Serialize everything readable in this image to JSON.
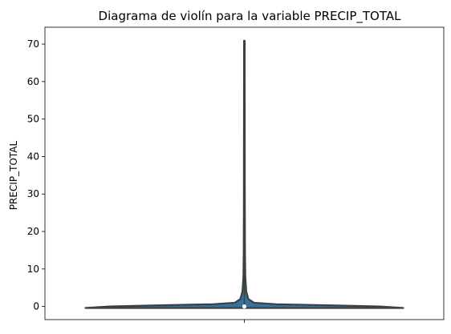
{
  "chart_data": {
    "type": "violin",
    "title": "Diagrama de violín para la variable PRECIP_TOTAL",
    "xlabel": "",
    "ylabel": "PRECIP_TOTAL",
    "ylim": [
      -3.5,
      74.5
    ],
    "yticks": [
      0,
      10,
      20,
      30,
      40,
      50,
      60,
      70
    ],
    "grid": false,
    "series": [
      {
        "min": -0.4,
        "max": 70.9,
        "q1": 0,
        "median": 0,
        "q3": 0.3,
        "color": "#3274a1",
        "density_profile": [
          [
            -0.4,
            1.0
          ],
          [
            0.0,
            0.85
          ],
          [
            0.3,
            0.55
          ],
          [
            0.6,
            0.2
          ],
          [
            1.0,
            0.06
          ],
          [
            2.0,
            0.025
          ],
          [
            4.0,
            0.012
          ],
          [
            8.0,
            0.006
          ],
          [
            15.0,
            0.004
          ],
          [
            30.0,
            0.003
          ],
          [
            70.9,
            0.002
          ]
        ]
      }
    ]
  }
}
